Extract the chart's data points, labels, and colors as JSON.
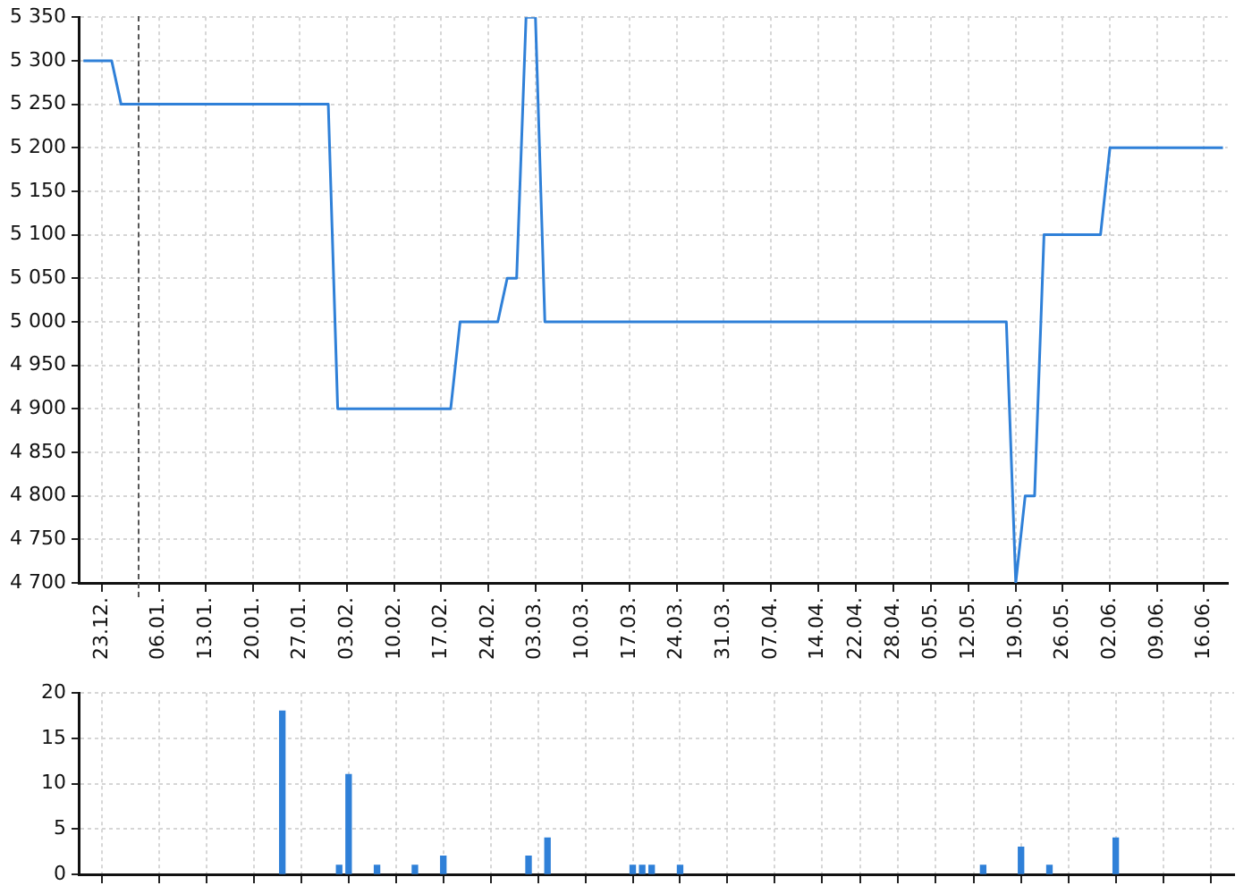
{
  "chart_data": [
    {
      "type": "line",
      "categories": [
        null,
        null,
        "23.12.",
        null,
        null,
        null,
        null,
        null,
        "06.01.",
        null,
        null,
        null,
        null,
        "13.01.",
        null,
        null,
        null,
        null,
        "20.01.",
        null,
        null,
        null,
        null,
        "27.01.",
        null,
        null,
        null,
        null,
        "03.02.",
        null,
        null,
        null,
        null,
        "10.02.",
        null,
        null,
        null,
        null,
        "17.02.",
        null,
        null,
        null,
        null,
        "24.02.",
        null,
        null,
        null,
        null,
        "03.03.",
        null,
        null,
        null,
        null,
        "10.03.",
        null,
        null,
        null,
        null,
        "17.03.",
        null,
        null,
        null,
        null,
        "24.03.",
        null,
        null,
        null,
        null,
        "31.03.",
        null,
        null,
        null,
        null,
        "07.04.",
        null,
        null,
        null,
        null,
        "14.04.",
        null,
        null,
        null,
        "22.04.",
        null,
        null,
        null,
        "28.04.",
        null,
        null,
        null,
        "05.05.",
        null,
        null,
        null,
        "12.05.",
        null,
        null,
        null,
        null,
        "19.05.",
        null,
        null,
        null,
        null,
        "26.05.",
        null,
        null,
        null,
        null,
        "02.06.",
        null,
        null,
        null,
        null,
        "09.06.",
        null,
        null,
        null,
        null,
        "16.06.",
        null,
        null
      ],
      "values": [
        5300,
        5300,
        5300,
        5300,
        5250,
        5250,
        5250,
        5250,
        5250,
        5250,
        5250,
        5250,
        5250,
        5250,
        5250,
        5250,
        5250,
        5250,
        5250,
        5250,
        5250,
        5250,
        5250,
        5250,
        5250,
        5250,
        5250,
        4900,
        4900,
        4900,
        4900,
        4900,
        4900,
        4900,
        4900,
        4900,
        4900,
        4900,
        4900,
        4900,
        5000,
        5000,
        5000,
        5000,
        5000,
        5050,
        5050,
        5350,
        5350,
        5000,
        5000,
        5000,
        5000,
        5000,
        5000,
        5000,
        5000,
        5000,
        5000,
        5000,
        5000,
        5000,
        5000,
        5000,
        5000,
        5000,
        5000,
        5000,
        5000,
        5000,
        5000,
        5000,
        5000,
        5000,
        5000,
        5000,
        5000,
        5000,
        5000,
        5000,
        5000,
        5000,
        5000,
        5000,
        5000,
        5000,
        5000,
        5000,
        5000,
        5000,
        5000,
        5000,
        5000,
        5000,
        5000,
        5000,
        5000,
        5000,
        5000,
        4700,
        4800,
        4800,
        5100,
        5100,
        5100,
        5100,
        5100,
        5100,
        5100,
        5200,
        5200,
        5200,
        5200,
        5200,
        5200,
        5200,
        5200,
        5200,
        5200,
        5200,
        5200,
        5200
      ],
      "color": "#2f80d8",
      "ylim": [
        4700,
        5350
      ],
      "yticks": [
        {
          "value": 4700,
          "label": "4 700"
        },
        {
          "value": 4750,
          "label": "4 750"
        },
        {
          "value": 4800,
          "label": "4 800"
        },
        {
          "value": 4850,
          "label": "4 850"
        },
        {
          "value": 4900,
          "label": "4 900"
        },
        {
          "value": 4950,
          "label": "4 950"
        },
        {
          "value": 5000,
          "label": "5 000"
        },
        {
          "value": 5050,
          "label": "5 050"
        },
        {
          "value": 5100,
          "label": "5 100"
        },
        {
          "value": 5150,
          "label": "5 150"
        },
        {
          "value": 5200,
          "label": "5 200"
        },
        {
          "value": 5250,
          "label": "5 250"
        },
        {
          "value": 5300,
          "label": "5 300"
        },
        {
          "value": 5350,
          "label": "5 350"
        }
      ],
      "grid": true
    },
    {
      "type": "bar",
      "categories": [
        null,
        null,
        "23.12.",
        null,
        null,
        null,
        null,
        null,
        "06.01.",
        null,
        null,
        null,
        null,
        "13.01.",
        null,
        null,
        null,
        null,
        "20.01.",
        null,
        null,
        null,
        null,
        "27.01.",
        null,
        null,
        null,
        null,
        "03.02.",
        null,
        null,
        null,
        null,
        "10.02.",
        null,
        null,
        null,
        null,
        "17.02.",
        null,
        null,
        null,
        null,
        "24.02.",
        null,
        null,
        null,
        null,
        "03.03.",
        null,
        null,
        null,
        null,
        "10.03.",
        null,
        null,
        null,
        null,
        "17.03.",
        null,
        null,
        null,
        null,
        "24.03.",
        null,
        null,
        null,
        null,
        "31.03.",
        null,
        null,
        null,
        null,
        "07.04.",
        null,
        null,
        null,
        null,
        "14.04.",
        null,
        null,
        null,
        "22.04.",
        null,
        null,
        null,
        "28.04.",
        null,
        null,
        null,
        "05.05.",
        null,
        null,
        null,
        "12.05.",
        null,
        null,
        null,
        null,
        "19.05.",
        null,
        null,
        null,
        null,
        "26.05.",
        null,
        null,
        null,
        null,
        "02.06.",
        null,
        null,
        null,
        null,
        "09.06.",
        null,
        null,
        null,
        null,
        "16.06.",
        null,
        null
      ],
      "values": [
        null,
        null,
        null,
        null,
        null,
        null,
        null,
        null,
        null,
        null,
        null,
        null,
        null,
        null,
        null,
        null,
        null,
        null,
        null,
        null,
        null,
        18,
        null,
        null,
        null,
        null,
        null,
        1,
        11,
        null,
        null,
        1,
        null,
        null,
        null,
        1,
        null,
        null,
        2,
        null,
        null,
        null,
        null,
        null,
        null,
        null,
        null,
        2,
        null,
        4,
        null,
        null,
        null,
        null,
        null,
        null,
        null,
        null,
        1,
        1,
        1,
        null,
        null,
        1,
        null,
        null,
        null,
        null,
        null,
        null,
        null,
        null,
        null,
        null,
        null,
        null,
        null,
        null,
        null,
        null,
        null,
        null,
        null,
        null,
        null,
        null,
        null,
        null,
        null,
        null,
        null,
        null,
        null,
        null,
        null,
        1,
        null,
        null,
        null,
        3,
        null,
        null,
        1,
        null,
        null,
        null,
        null,
        null,
        null,
        4,
        null,
        null,
        null,
        null,
        null,
        null,
        null,
        null,
        null,
        null,
        null,
        null
      ],
      "color": "#2f80d8",
      "ylim": [
        0,
        20
      ],
      "yticks": [
        0,
        5,
        10,
        15,
        20
      ],
      "grid": true,
      "tick_labels": "y"
    }
  ]
}
